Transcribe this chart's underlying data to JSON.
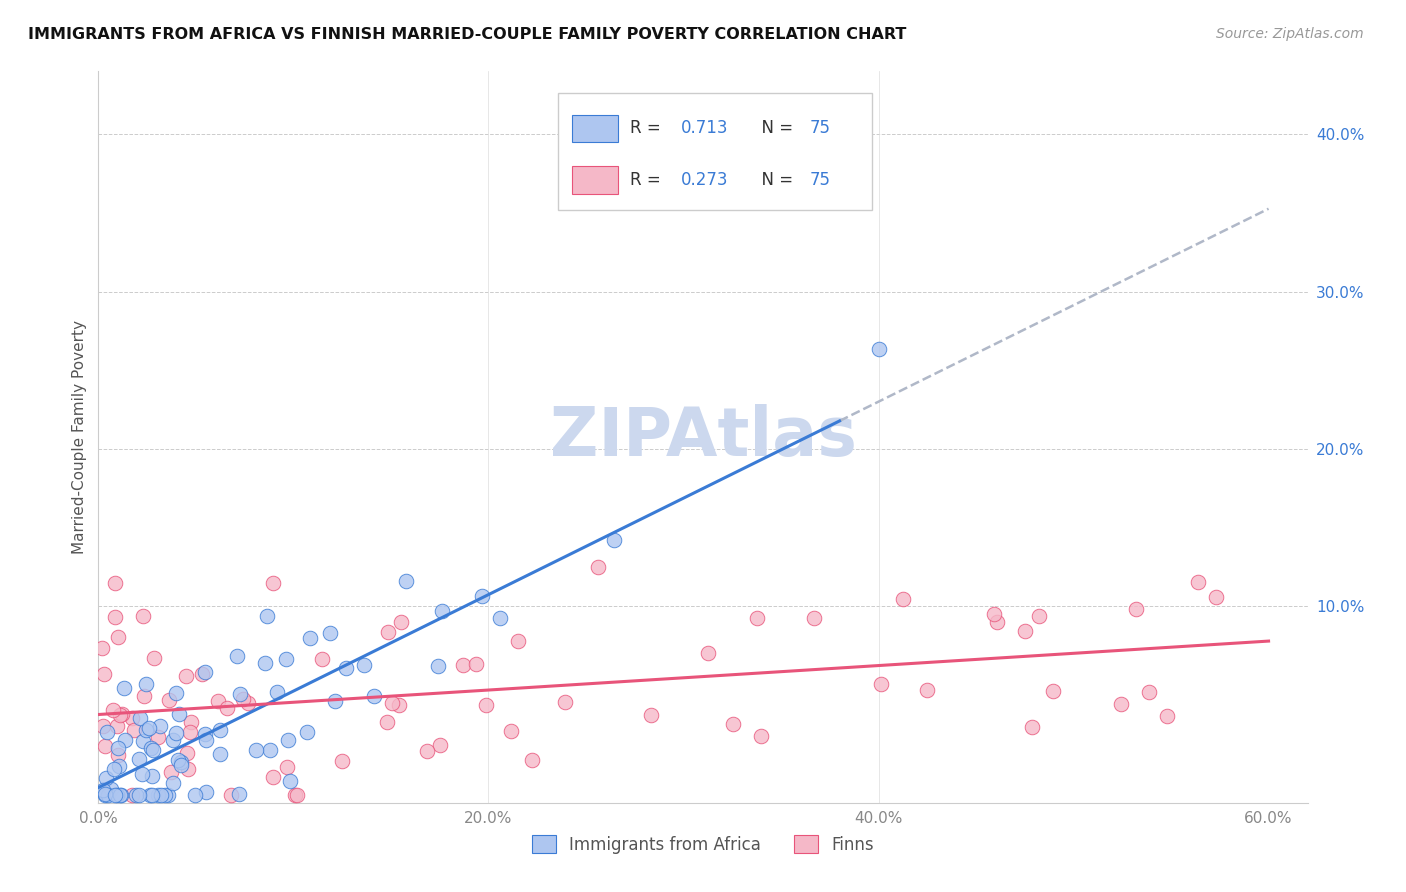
{
  "title": "IMMIGRANTS FROM AFRICA VS FINNISH MARRIED-COUPLE FAMILY POVERTY CORRELATION CHART",
  "source": "Source: ZipAtlas.com",
  "ylabel": "Married-Couple Family Poverty",
  "xlim": [
    0.0,
    0.62
  ],
  "ylim": [
    -0.025,
    0.44
  ],
  "blue_color": "#aec6f0",
  "pink_color": "#f5b8c8",
  "blue_line_color": "#3a7bd5",
  "pink_line_color": "#e8547a",
  "dashed_line_color": "#b0b8c8",
  "watermark_color": "#ccd8ee",
  "R_blue": 0.713,
  "R_pink": 0.273,
  "N": 75,
  "blue_slope": 0.62,
  "blue_intercept": -0.015,
  "pink_slope": 0.13,
  "pink_intercept": 0.02,
  "figsize": [
    14.06,
    8.92
  ],
  "dpi": 100,
  "blue_seed": 77,
  "pink_seed": 42
}
